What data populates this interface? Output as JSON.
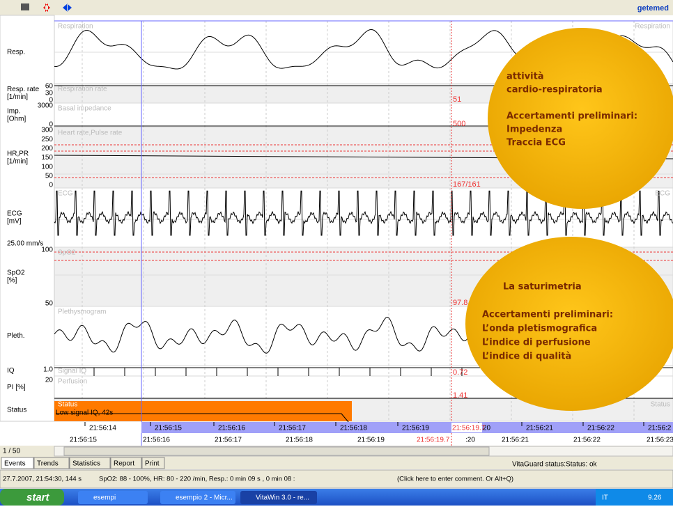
{
  "toolbar": {
    "logo": "getemed"
  },
  "channels": [
    {
      "label": [
        "Resp."
      ],
      "title": "Respiration",
      "title_right": "Respiration",
      "ticks": []
    },
    {
      "label": [
        "Resp. rate",
        "[1/min]"
      ],
      "title": "Respiration rate",
      "ticks": [
        "60",
        "30",
        "0"
      ],
      "cursor_value": "51"
    },
    {
      "label": [
        "Imp.",
        "[Ohm]"
      ],
      "title": "Basal impedance",
      "ticks": [
        "3000",
        "0"
      ],
      "cursor_value": "500"
    },
    {
      "label": [
        "HR,PR",
        "[1/min]"
      ],
      "title": "Heart rate,Pulse rate",
      "ticks": [
        "300",
        "250",
        "200",
        "150",
        "100",
        "50",
        "0"
      ],
      "cursor_value": "167/161"
    },
    {
      "label": [
        "ECG",
        "[mV]"
      ],
      "title": "ECG",
      "title_right": "ECG",
      "ticks": [],
      "speed": "25.00 mm/s"
    },
    {
      "label": [
        "SpO2",
        "[%]"
      ],
      "title": "SpO2",
      "ticks": [
        "100",
        "50"
      ],
      "cursor_value": "97.8"
    },
    {
      "label": [
        "Pleth."
      ],
      "title": "Plethysmogram",
      "ticks": []
    },
    {
      "label": [
        "IQ"
      ],
      "title": "Signal IQ",
      "ticks": [
        "1.0"
      ],
      "cursor_value": "0.72"
    },
    {
      "label": [
        "PI [%]"
      ],
      "title": "Perfusion",
      "ticks": [
        "20"
      ],
      "cursor_value": "1.41"
    },
    {
      "label": [
        "Status"
      ],
      "title": "Status",
      "title_right": "Status",
      "ticks": [],
      "event": "Low signal IQ, 42s"
    }
  ],
  "time_row_1": [
    "21:56:14",
    "21:56:15",
    "21:56:16",
    "21:56:17",
    "21:56:18",
    "21:56:19",
    "20",
    "21:56:21",
    "21:56:22",
    "21:56:2"
  ],
  "time_row_2": [
    "21:56:15",
    "21:56:16",
    "21:56:17",
    "21:56:18",
    "21:56:19",
    ":20",
    "21:56:21",
    "21:56:22",
    "21:56:23"
  ],
  "cursor_time": "21:56:19.7",
  "page": "1 / 50",
  "tabs": [
    "Events",
    "Trends",
    "Statistics",
    "Report",
    "Print"
  ],
  "device_status": "VitaGuard status:Status: ok",
  "status_bar": [
    "27.7.2007, 21:54:30, 144 s",
    "SpO2: 88 - 100%, HR: 80 - 220 /min, Resp.: 0 min 09 s , 0 min 08 :",
    "(Click here to enter comment. Or Alt+Q)"
  ],
  "taskbar": {
    "start": "start",
    "items": [
      "esempi",
      "esempio 2 - Micr...",
      "VitaWin 3.0 - re..."
    ],
    "lang": "IT",
    "clock": "9.26"
  },
  "overlay_1": [
    "attività",
    "cardio-respiratoria",
    "",
    "Accertamenti preliminari:",
    "Impedenza",
    "Traccia ECG"
  ],
  "overlay_2": [
    "La saturimetria",
    "",
    "Accertamenti preliminari:",
    "L’onda pletismografica",
    "L’indice di perfusione",
    " L’indice di qualità"
  ]
}
